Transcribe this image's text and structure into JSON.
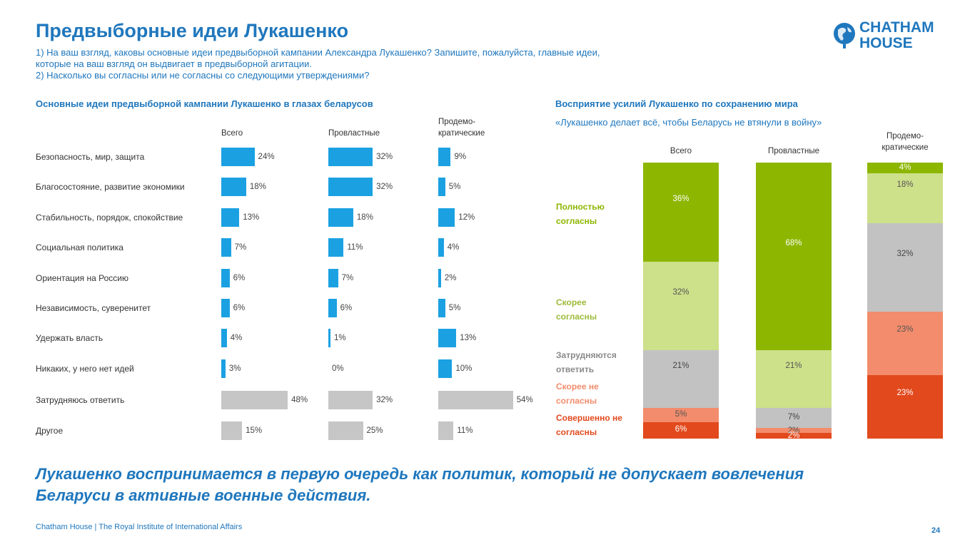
{
  "header": {
    "title": "Предвыборные идеи Лукашенко",
    "subtitle_line1": "1) На ваш взгляд, каковы основные идеи предвыборной кампании Александра Лукашенко? Запишите, пожалуйста, главные идеи,",
    "subtitle_line2": "которые на ваш взгляд он выдвигает в предвыборной агитации.",
    "subtitle_line3": "2) Насколько вы согласны или не согласны со следующими утверждениями?"
  },
  "logo": {
    "line1": "CHATHAM",
    "line2": "HOUSE"
  },
  "colors": {
    "blue": "#1ba1e2",
    "gray": "#c6c6c6",
    "dark_green": "#8db600",
    "light_green": "#cde08a",
    "neutral": "#c2c2c2",
    "light_red": "#f28c6c",
    "dark_red": "#e2491d",
    "brand": "#1f77bd"
  },
  "chart_data": [
    {
      "type": "bar",
      "orientation": "horizontal",
      "title": "Основные идеи предвыборной кампании Лукашенко в глазах беларусов",
      "categories": [
        "Безопасность, мир, защита",
        "Благосостояние, развитие экономики",
        "Стабильность, порядок, спокойствие",
        "Социальная политика",
        "Ориентация на Россию",
        "Независимость, суверенитет",
        "Удержать власть",
        "Никаких, у него нет идей",
        "Затрудняюсь ответить",
        "Другое"
      ],
      "series": [
        {
          "name": "Всего",
          "values": [
            24,
            18,
            13,
            7,
            6,
            6,
            4,
            3,
            48,
            15
          ]
        },
        {
          "name": "Провластные",
          "values": [
            32,
            32,
            18,
            11,
            7,
            6,
            1,
            0,
            32,
            25
          ]
        },
        {
          "name": "Продемо-кратические",
          "name_line1": "Продемо-",
          "name_line2": "кратические",
          "values": [
            9,
            5,
            12,
            4,
            2,
            5,
            13,
            10,
            54,
            11
          ]
        }
      ],
      "unit": "%"
    },
    {
      "type": "bar",
      "stacked": true,
      "title": "Восприятие усилий Лукашенко по сохранению мира",
      "subtitle": "«Лукашенко делает всё, чтобы Беларусь не втянули в войну»",
      "categories": [
        "Всего",
        "Провластные",
        "Продемо-кратические"
      ],
      "category_lines": [
        [
          "Всего"
        ],
        [
          "Провластные"
        ],
        [
          "Продемо-",
          "кратические"
        ]
      ],
      "series": [
        {
          "name": "Полностью согласны",
          "label_lines": [
            "Полностью",
            "согласны"
          ],
          "values": [
            36,
            68,
            4
          ]
        },
        {
          "name": "Скорее согласны",
          "label_lines": [
            "Скорее",
            "согласны"
          ],
          "values": [
            32,
            21,
            18
          ]
        },
        {
          "name": "Затрудняются ответить",
          "label_lines": [
            "Затрудняются",
            "ответить"
          ],
          "values": [
            21,
            7,
            32
          ]
        },
        {
          "name": "Скорее не согласны",
          "label_lines": [
            "Скорее не",
            "согласны"
          ],
          "values": [
            5,
            2,
            23
          ]
        },
        {
          "name": "Совершенно не согласны",
          "label_lines": [
            "Совершенно не",
            "согласны"
          ],
          "values": [
            6,
            2,
            23
          ]
        }
      ],
      "unit": "%"
    }
  ],
  "conclusion": {
    "line1": "Лукашенко воспринимается в первую очередь как политик, который не допускает вовлечения",
    "line2": "Беларуси в активные военные действия."
  },
  "footer": {
    "text": "Chatham House  |  The Royal Institute of International Affairs",
    "page": "24"
  }
}
